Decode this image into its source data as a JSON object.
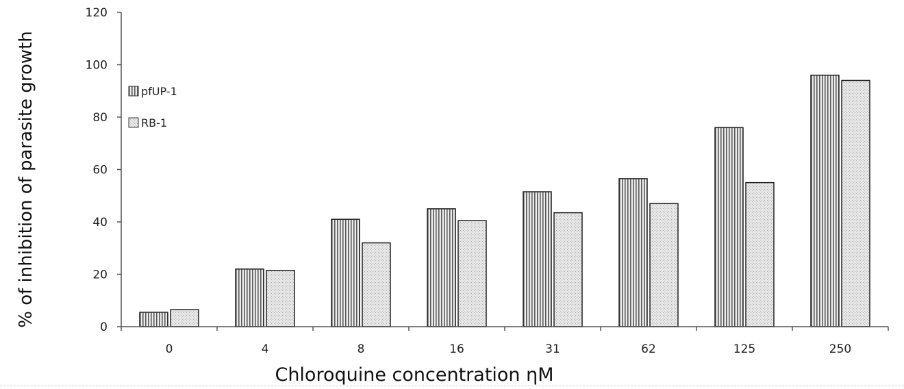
{
  "chart_data": {
    "type": "bar",
    "categories": [
      "0",
      "4",
      "8",
      "16",
      "31",
      "62",
      "125",
      "250"
    ],
    "series": [
      {
        "name": "pfUP-1",
        "values": [
          5.5,
          22,
          41,
          45,
          51.5,
          56.5,
          76,
          96
        ]
      },
      {
        "name": "RB-1",
        "values": [
          6.5,
          21.5,
          32,
          40.5,
          43.5,
          47,
          55,
          94
        ]
      }
    ],
    "title": "",
    "xlabel": "Chloroquine concentration ηM",
    "ylabel": "% of inhibition of parasite growth",
    "ylim": [
      0,
      120
    ],
    "yticks": [
      0,
      20,
      40,
      60,
      80,
      100,
      120
    ],
    "grid": false,
    "legend_position": "top-left"
  }
}
